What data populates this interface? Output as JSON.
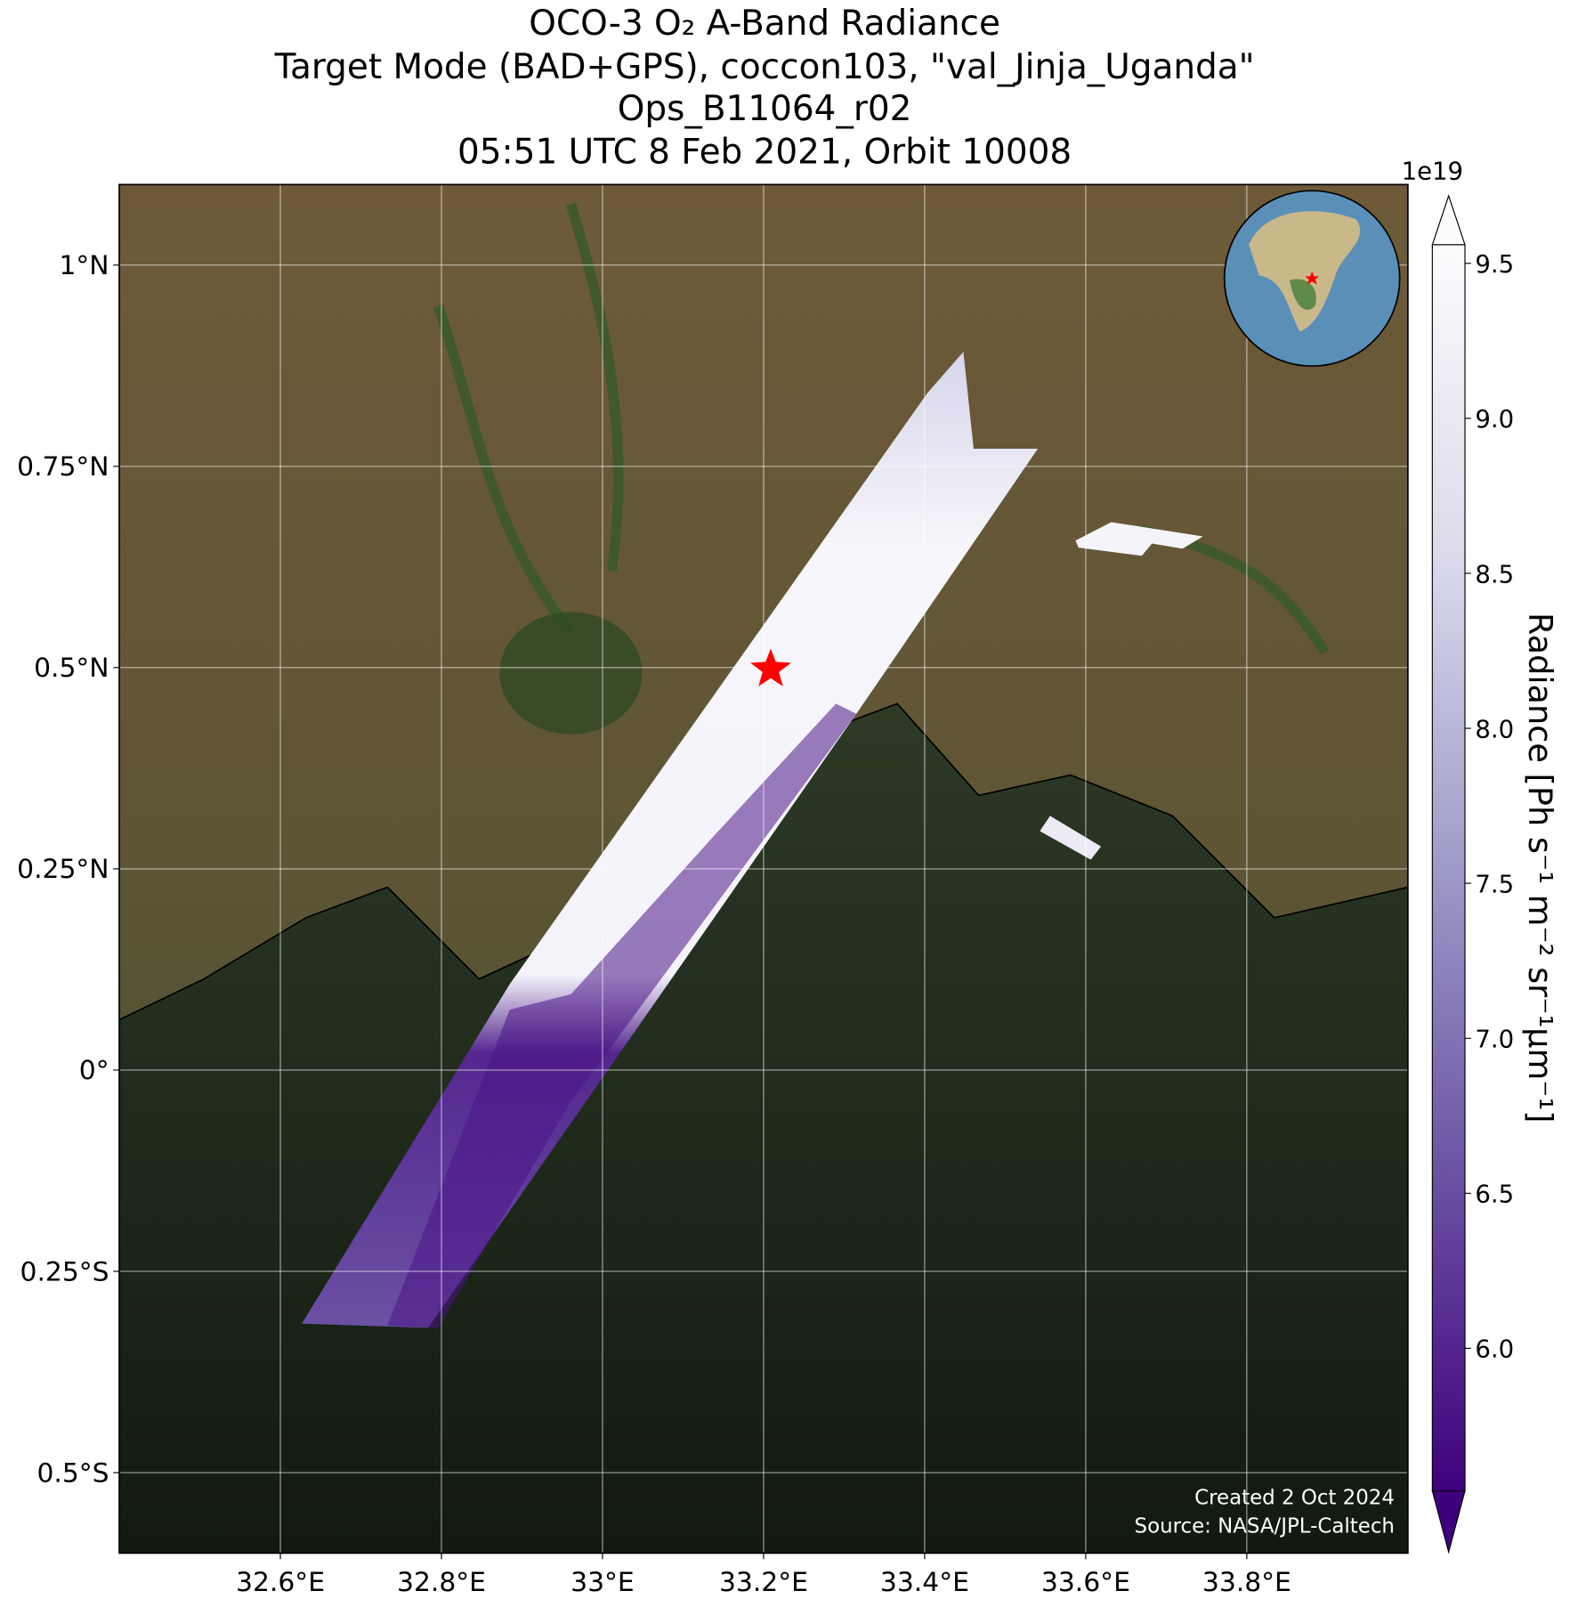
{
  "title": [
    "OCO-3 O₂ A-Band Radiance",
    "Target Mode (BAD+GPS), coccon103, \"val_Jinja_Uganda\"",
    "Ops_B11064_r02",
    "05:51 UTC 8 Feb 2021, Orbit 10008"
  ],
  "map": {
    "xlim": [
      32.4,
      34.0
    ],
    "ylim": [
      -0.6,
      1.1
    ],
    "grid": true,
    "xticks": [
      {
        "value": 32.6,
        "label": "32.6°E"
      },
      {
        "value": 32.8,
        "label": "32.8°E"
      },
      {
        "value": 33,
        "label": "33°E"
      },
      {
        "value": 33.2,
        "label": "33.2°E"
      },
      {
        "value": 33.4,
        "label": "33.4°E"
      },
      {
        "value": 33.6,
        "label": "33.6°E"
      },
      {
        "value": 33.8,
        "label": "33.8°E"
      }
    ],
    "yticks": [
      {
        "value": -0.5,
        "label": "0.5°S"
      },
      {
        "value": -0.25,
        "label": "0.25°S"
      },
      {
        "value": 0,
        "label": "0°"
      },
      {
        "value": 0.25,
        "label": "0.25°N"
      },
      {
        "value": 0.5,
        "label": "0.5°N"
      },
      {
        "value": 0.75,
        "label": "0.75°N"
      },
      {
        "value": 1,
        "label": "1°N"
      }
    ]
  },
  "colorbar": {
    "label": "Radiance [Ph s⁻¹ m⁻² sr⁻¹μm⁻¹]",
    "exponent": "1e19",
    "ylim": [
      5.54,
      9.56
    ],
    "yticks": [
      {
        "value": 6,
        "label": "6.0"
      },
      {
        "value": 6.5,
        "label": "6.5"
      },
      {
        "value": 7,
        "label": "7.0"
      },
      {
        "value": 7.5,
        "label": "7.5"
      },
      {
        "value": 8,
        "label": "8.0"
      },
      {
        "value": 8.5,
        "label": "8.5"
      },
      {
        "value": 9,
        "label": "9.0"
      },
      {
        "value": 9.5,
        "label": "9.5"
      }
    ]
  },
  "credits": [
    "Created 2 Oct 2024",
    "Source: NASA/JPL-Caltech"
  ]
}
